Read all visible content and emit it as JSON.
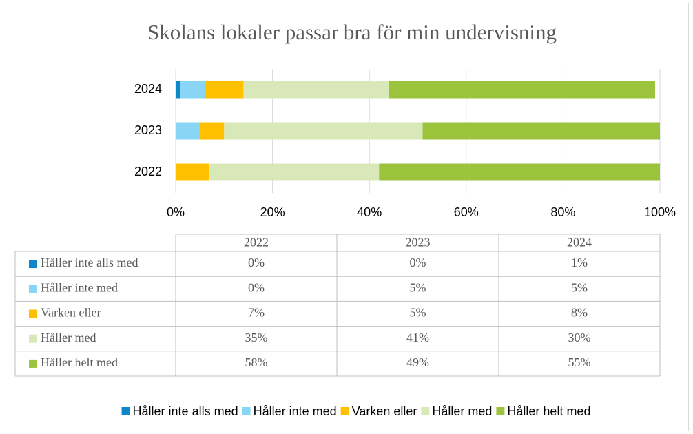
{
  "chart_data": {
    "type": "stacked_bar_horizontal",
    "title": "Skolans lokaler passar bra för min undervisning",
    "categories": [
      "2022",
      "2023",
      "2024"
    ],
    "series": [
      {
        "name": "Håller inte alls med",
        "color": "#0f86c6",
        "values": [
          0,
          0,
          1
        ],
        "value_labels": [
          "0%",
          "0%",
          "1%"
        ]
      },
      {
        "name": "Håller inte med",
        "color": "#89d5f6",
        "values": [
          0,
          5,
          5
        ],
        "value_labels": [
          "0%",
          "5%",
          "5%"
        ]
      },
      {
        "name": "Varken eller",
        "color": "#ffc000",
        "values": [
          7,
          5,
          8
        ],
        "value_labels": [
          "7%",
          "5%",
          "8%"
        ]
      },
      {
        "name": "Håller med",
        "color": "#d9e8b9",
        "values": [
          35,
          41,
          30
        ],
        "value_labels": [
          "35%",
          "41%",
          "30%"
        ]
      },
      {
        "name": "Håller helt med",
        "color": "#9bc33c",
        "values": [
          58,
          49,
          55
        ],
        "value_labels": [
          "58%",
          "49%",
          "55%"
        ]
      }
    ],
    "xlim": [
      0,
      100
    ],
    "xticks": [
      {
        "value": 0,
        "label": "0%"
      },
      {
        "value": 20,
        "label": "20%"
      },
      {
        "value": 40,
        "label": "40%"
      },
      {
        "value": 60,
        "label": "60%"
      },
      {
        "value": 80,
        "label": "80%"
      },
      {
        "value": 100,
        "label": "100%"
      }
    ],
    "grid": true,
    "legend": "bottom",
    "data_table": true
  }
}
